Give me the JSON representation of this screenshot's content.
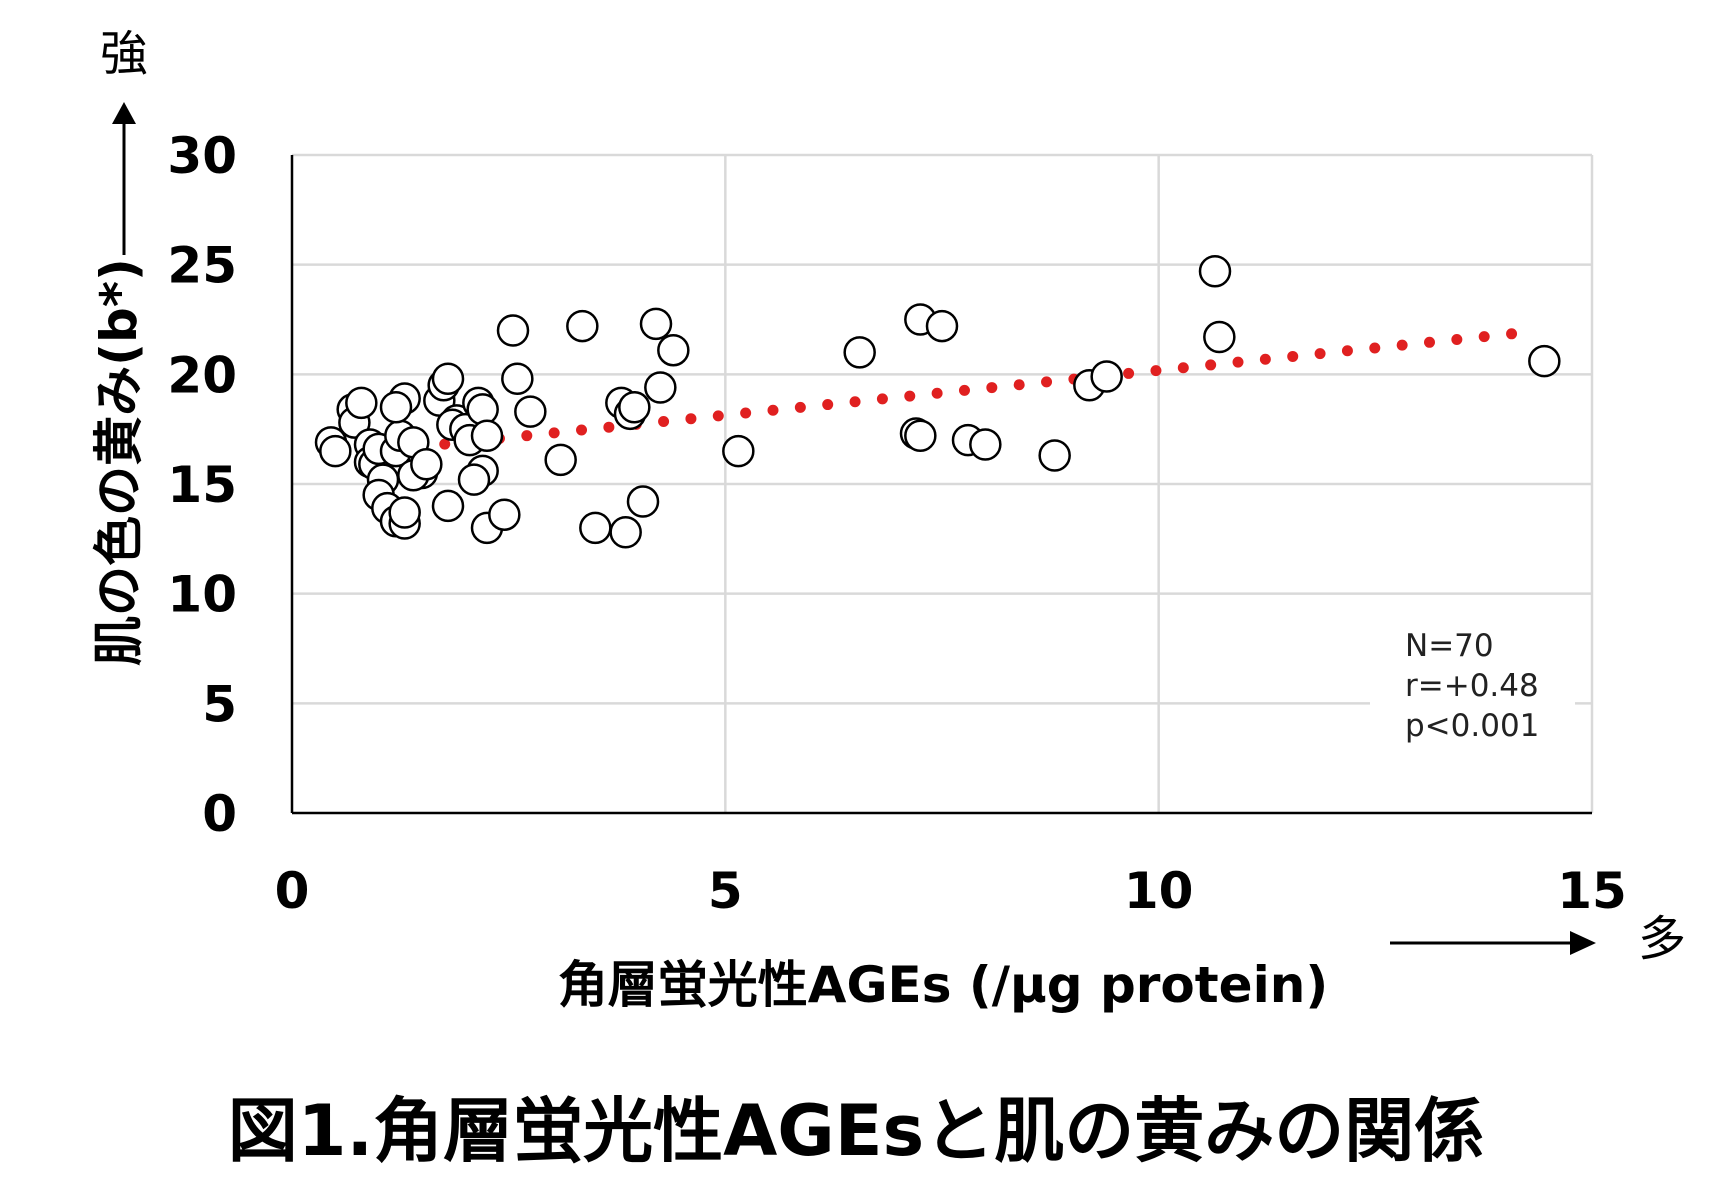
{
  "chart_data": {
    "type": "scatter",
    "xlabel": "角層蛍光性AGEs (/µg protein)",
    "ylabel": "肌の色の黄み(b*)",
    "xlim": [
      0,
      15
    ],
    "ylim": [
      0,
      30
    ],
    "xticks": [
      "0",
      "5",
      "10",
      "15"
    ],
    "yticks": [
      "0",
      "5",
      "10",
      "15",
      "20",
      "25",
      "30"
    ],
    "grid": true,
    "axis_arrows": {
      "y_label": "強",
      "x_label": "多"
    },
    "stats_text": [
      "N=70",
      "r=+0.48",
      "p<0.001"
    ],
    "trendline": {
      "style": "dotted",
      "color": "#e02020",
      "x_start": 0.5,
      "x_end": 14.2,
      "y_start": 16.3,
      "y_end": 21.9
    },
    "points": [
      {
        "x": 0.45,
        "y": 16.9
      },
      {
        "x": 0.5,
        "y": 16.5
      },
      {
        "x": 0.7,
        "y": 18.4
      },
      {
        "x": 0.72,
        "y": 17.8
      },
      {
        "x": 0.8,
        "y": 18.7
      },
      {
        "x": 0.9,
        "y": 16.8
      },
      {
        "x": 0.9,
        "y": 16.0
      },
      {
        "x": 0.95,
        "y": 15.9
      },
      {
        "x": 1.0,
        "y": 16.6
      },
      {
        "x": 1.05,
        "y": 15.2
      },
      {
        "x": 1.0,
        "y": 14.5
      },
      {
        "x": 1.1,
        "y": 13.9
      },
      {
        "x": 1.2,
        "y": 13.3
      },
      {
        "x": 1.3,
        "y": 13.2
      },
      {
        "x": 1.3,
        "y": 13.7
      },
      {
        "x": 1.2,
        "y": 16.5
      },
      {
        "x": 1.25,
        "y": 17.2
      },
      {
        "x": 1.3,
        "y": 18.9
      },
      {
        "x": 1.2,
        "y": 18.5
      },
      {
        "x": 1.4,
        "y": 16.9
      },
      {
        "x": 1.5,
        "y": 15.5
      },
      {
        "x": 1.4,
        "y": 15.4
      },
      {
        "x": 1.55,
        "y": 15.9
      },
      {
        "x": 1.7,
        "y": 18.8
      },
      {
        "x": 1.75,
        "y": 19.5
      },
      {
        "x": 1.8,
        "y": 19.8
      },
      {
        "x": 1.9,
        "y": 17.9
      },
      {
        "x": 1.85,
        "y": 17.7
      },
      {
        "x": 1.8,
        "y": 14.0
      },
      {
        "x": 2.0,
        "y": 17.5
      },
      {
        "x": 2.05,
        "y": 17.0
      },
      {
        "x": 2.15,
        "y": 18.7
      },
      {
        "x": 2.2,
        "y": 18.4
      },
      {
        "x": 2.2,
        "y": 15.6
      },
      {
        "x": 2.1,
        "y": 15.2
      },
      {
        "x": 2.25,
        "y": 17.2
      },
      {
        "x": 2.25,
        "y": 13.0
      },
      {
        "x": 2.45,
        "y": 13.6
      },
      {
        "x": 2.55,
        "y": 22.0
      },
      {
        "x": 2.6,
        "y": 19.8
      },
      {
        "x": 2.75,
        "y": 18.3
      },
      {
        "x": 3.1,
        "y": 16.1
      },
      {
        "x": 3.35,
        "y": 22.2
      },
      {
        "x": 3.5,
        "y": 13.0
      },
      {
        "x": 3.8,
        "y": 18.7
      },
      {
        "x": 3.85,
        "y": 12.8
      },
      {
        "x": 3.9,
        "y": 18.2
      },
      {
        "x": 3.95,
        "y": 18.5
      },
      {
        "x": 4.05,
        "y": 14.2
      },
      {
        "x": 4.2,
        "y": 22.3
      },
      {
        "x": 4.25,
        "y": 19.4
      },
      {
        "x": 4.4,
        "y": 21.1
      },
      {
        "x": 5.15,
        "y": 16.5
      },
      {
        "x": 6.55,
        "y": 21.0
      },
      {
        "x": 7.2,
        "y": 17.3
      },
      {
        "x": 7.25,
        "y": 17.2
      },
      {
        "x": 7.25,
        "y": 22.5
      },
      {
        "x": 7.5,
        "y": 22.2
      },
      {
        "x": 7.8,
        "y": 17.0
      },
      {
        "x": 8.0,
        "y": 16.8
      },
      {
        "x": 8.8,
        "y": 16.3
      },
      {
        "x": 9.2,
        "y": 19.5
      },
      {
        "x": 9.4,
        "y": 19.9
      },
      {
        "x": 10.65,
        "y": 24.7
      },
      {
        "x": 10.7,
        "y": 21.7
      },
      {
        "x": 14.45,
        "y": 20.6
      }
    ]
  },
  "caption": "図1.角層蛍光性AGEsと肌の黄み の関係",
  "caption_text": "図1.角層蛍光性AGEsと肌の黄みの関係"
}
